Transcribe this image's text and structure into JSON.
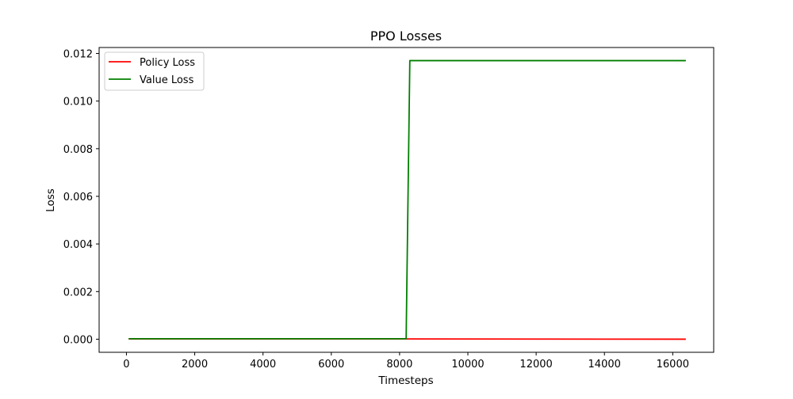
{
  "chart_data": {
    "type": "line",
    "title": "PPO Losses",
    "xlabel": "Timesteps",
    "ylabel": "Loss",
    "xlim": [
      -800,
      17200
    ],
    "ylim": [
      -0.00055,
      0.01225
    ],
    "x_ticks": [
      0,
      2000,
      4000,
      6000,
      8000,
      10000,
      12000,
      14000,
      16000
    ],
    "y_ticks": [
      0.0,
      0.002,
      0.004,
      0.006,
      0.008,
      0.01,
      0.012
    ],
    "y_tick_labels": [
      "0.000",
      "0.002",
      "0.004",
      "0.006",
      "0.008",
      "0.010",
      "0.012"
    ],
    "grid": false,
    "legend_position": "upper-left",
    "series": [
      {
        "name": "Policy Loss",
        "color": "#ff0000",
        "points": [
          [
            64,
            1e-05
          ],
          [
            8192,
            1e-05
          ],
          [
            16384,
            0.0
          ]
        ]
      },
      {
        "name": "Value Loss",
        "color": "#008000",
        "points": [
          [
            64,
            2e-05
          ],
          [
            8192,
            2e-05
          ],
          [
            8300,
            0.0117
          ],
          [
            16384,
            0.0117
          ]
        ]
      }
    ]
  }
}
